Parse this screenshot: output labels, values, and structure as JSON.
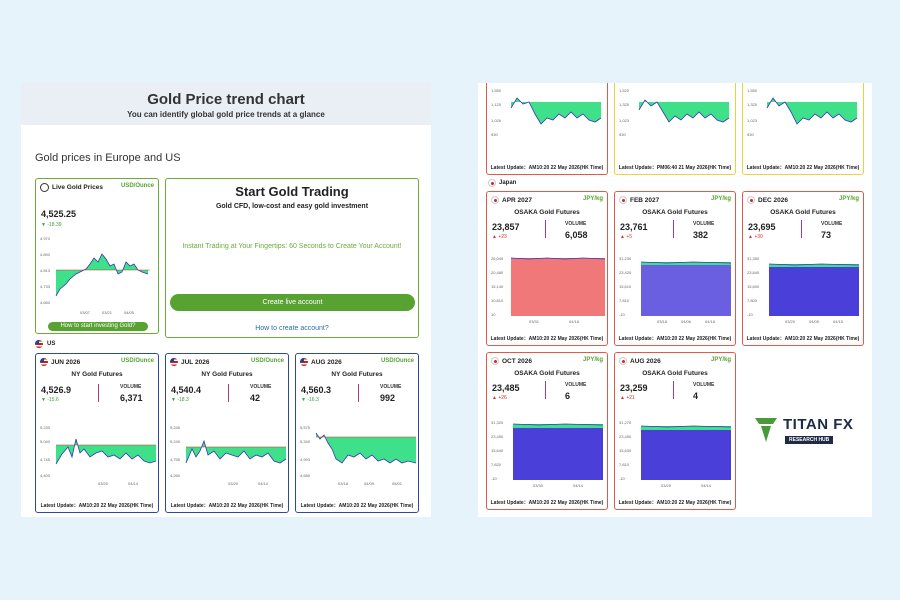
{
  "hero": {
    "title": "Gold Price trend chart",
    "subtitle": "You can identify global gold price trends at a glance"
  },
  "section_title": "Gold prices in Europe and US",
  "live": {
    "title": "Live Gold Prices",
    "unit": "USD/Ounce",
    "price": "4,525.25",
    "change": "▼ -18.39",
    "yticks": [
      "4,970",
      "4,890",
      "4,813",
      "4,733",
      "4,650"
    ],
    "xticks": [
      "03/07",
      "03/21",
      "04/05"
    ],
    "link": "How to start investing Gold?"
  },
  "promo": {
    "title": "Start Gold Trading",
    "subtitle": "Gold CFD, low-cost and easy gold investment",
    "tagline": "Instant Trading at Your Fingertips: 60 Seconds to Create Your Account!",
    "button": "Create live account",
    "link": "How to create account?"
  },
  "us_label": "US",
  "us_cards": [
    {
      "month": "JUN 2026",
      "unit": "USD/Ounce",
      "name": "NY Gold Futures",
      "price": "4,526.9",
      "change": "▼ -15.6",
      "vol_label": "VOLUME",
      "volume": "6,371",
      "yticks": [
        "5,230",
        "5,040",
        "4,745",
        "4,400"
      ],
      "xticks": [
        "03/20",
        "04/14"
      ],
      "footer": "Latest Update：AM10:20 22 May 2026(HK Time)"
    },
    {
      "month": "JUL 2026",
      "unit": "USD/Ounce",
      "name": "NY Gold Futures",
      "price": "4,540.4",
      "change": "▼ -18.3",
      "vol_label": "VOLUME",
      "volume": "42",
      "yticks": [
        "5,245",
        "5,240",
        "4,755",
        "4,260"
      ],
      "xticks": [
        "03/20",
        "04/14"
      ],
      "footer": "Latest Update：AM10:20 22 May 2026(HK Time)"
    },
    {
      "month": "AUG 2026",
      "unit": "USD/Ounce",
      "name": "NY Gold Futures",
      "price": "4,560.3",
      "change": "▼ -16.3",
      "vol_label": "VOLUME",
      "volume": "992",
      "yticks": [
        "5,575",
        "5,340",
        "4,993",
        "4,680"
      ],
      "xticks": [
        "03/18",
        "04/09",
        "05/01"
      ],
      "footer": "Latest Update：AM10:20 22 May 2026(HK Time)"
    }
  ],
  "top_row": [
    {
      "yticks": [
        "1,550",
        "1,125",
        "1,026",
        "930"
      ],
      "footer": "Latest Update：AM10:20 22 May 2026(HK Time)"
    },
    {
      "yticks": [
        "1,520",
        "1,325",
        "1,023",
        "930"
      ],
      "footer": "Latest Update：PM06:40 21 May 2026(HK Time)"
    },
    {
      "yticks": [
        "1,550",
        "1,325",
        "1,023",
        "930"
      ],
      "footer": "Latest Update：AM10:20 22 May 2026(HK Time)"
    }
  ],
  "japan_label": "Japan",
  "jp_cards": [
    {
      "month": "APR 2027",
      "unit": "JPY/kg",
      "name": "OSAKA Gold Futures",
      "price": "23,857",
      "change": "▲ +23",
      "vol_label": "VOLUME",
      "volume": "6,058",
      "yticks": [
        "26,040",
        "20,480",
        "15,140",
        "10,810",
        "10"
      ],
      "xticks": [
        "03/31",
        "04/16"
      ],
      "footer": "Latest Update：AM10:20 22 May 2026(HK Time)"
    },
    {
      "month": "FEB 2027",
      "unit": "JPY/kg",
      "name": "OSAKA Gold Futures",
      "price": "23,761",
      "change": "▲ +5",
      "vol_label": "VOLUME",
      "volume": "382",
      "yticks": [
        "31,230",
        "23,420",
        "15,610",
        "7,810",
        "-10"
      ],
      "xticks": [
        "03/18",
        "04/06",
        "04/16"
      ],
      "footer": "Latest Update：AM10:20 22 May 2026(HK Time)"
    },
    {
      "month": "DEC 2026",
      "unit": "JPY/kg",
      "name": "OSAKA Gold Futures",
      "price": "23,695",
      "change": "▲ +30",
      "vol_label": "VOLUME",
      "volume": "73",
      "yticks": [
        "31,350",
        "23,840",
        "15,600",
        "7,800",
        "-10"
      ],
      "xticks": [
        "03/20",
        "04/05",
        "04/15"
      ],
      "footer": "Latest Update：AM10:20 22 May 2026(HK Time)"
    },
    {
      "month": "OCT 2026",
      "unit": "JPY/kg",
      "name": "OSAKA Gold Futures",
      "price": "23,485",
      "change": "▲ +26",
      "vol_label": "VOLUME",
      "volume": "6",
      "yticks": [
        "31,320",
        "23,450",
        "15,640",
        "7,820",
        "-10"
      ],
      "xticks": [
        "03/30",
        "04/14"
      ],
      "footer": "Latest Update：AM10:20 22 May 2026(HK Time)"
    },
    {
      "month": "AUG 2026",
      "unit": "JPY/kg",
      "name": "OSAKA Gold Futures",
      "price": "23,259",
      "change": "▲ +21",
      "vol_label": "VOLUME",
      "volume": "4",
      "yticks": [
        "31,270",
        "23,450",
        "15,630",
        "7,810",
        "-10"
      ],
      "xticks": [
        "03/20",
        "04/14"
      ],
      "footer": "Latest Update：AM10:20 22 May 2026(HK Time)"
    }
  ],
  "logo": {
    "brand": "TITAN FX",
    "sub": "RESEARCH HUB"
  },
  "colors": {
    "green": "#58a232",
    "blue": "#2e4a9e",
    "red": "#e05a4a",
    "yellow": "#e8d53a",
    "area": "#3ee08a",
    "line": "#3a35b8"
  }
}
